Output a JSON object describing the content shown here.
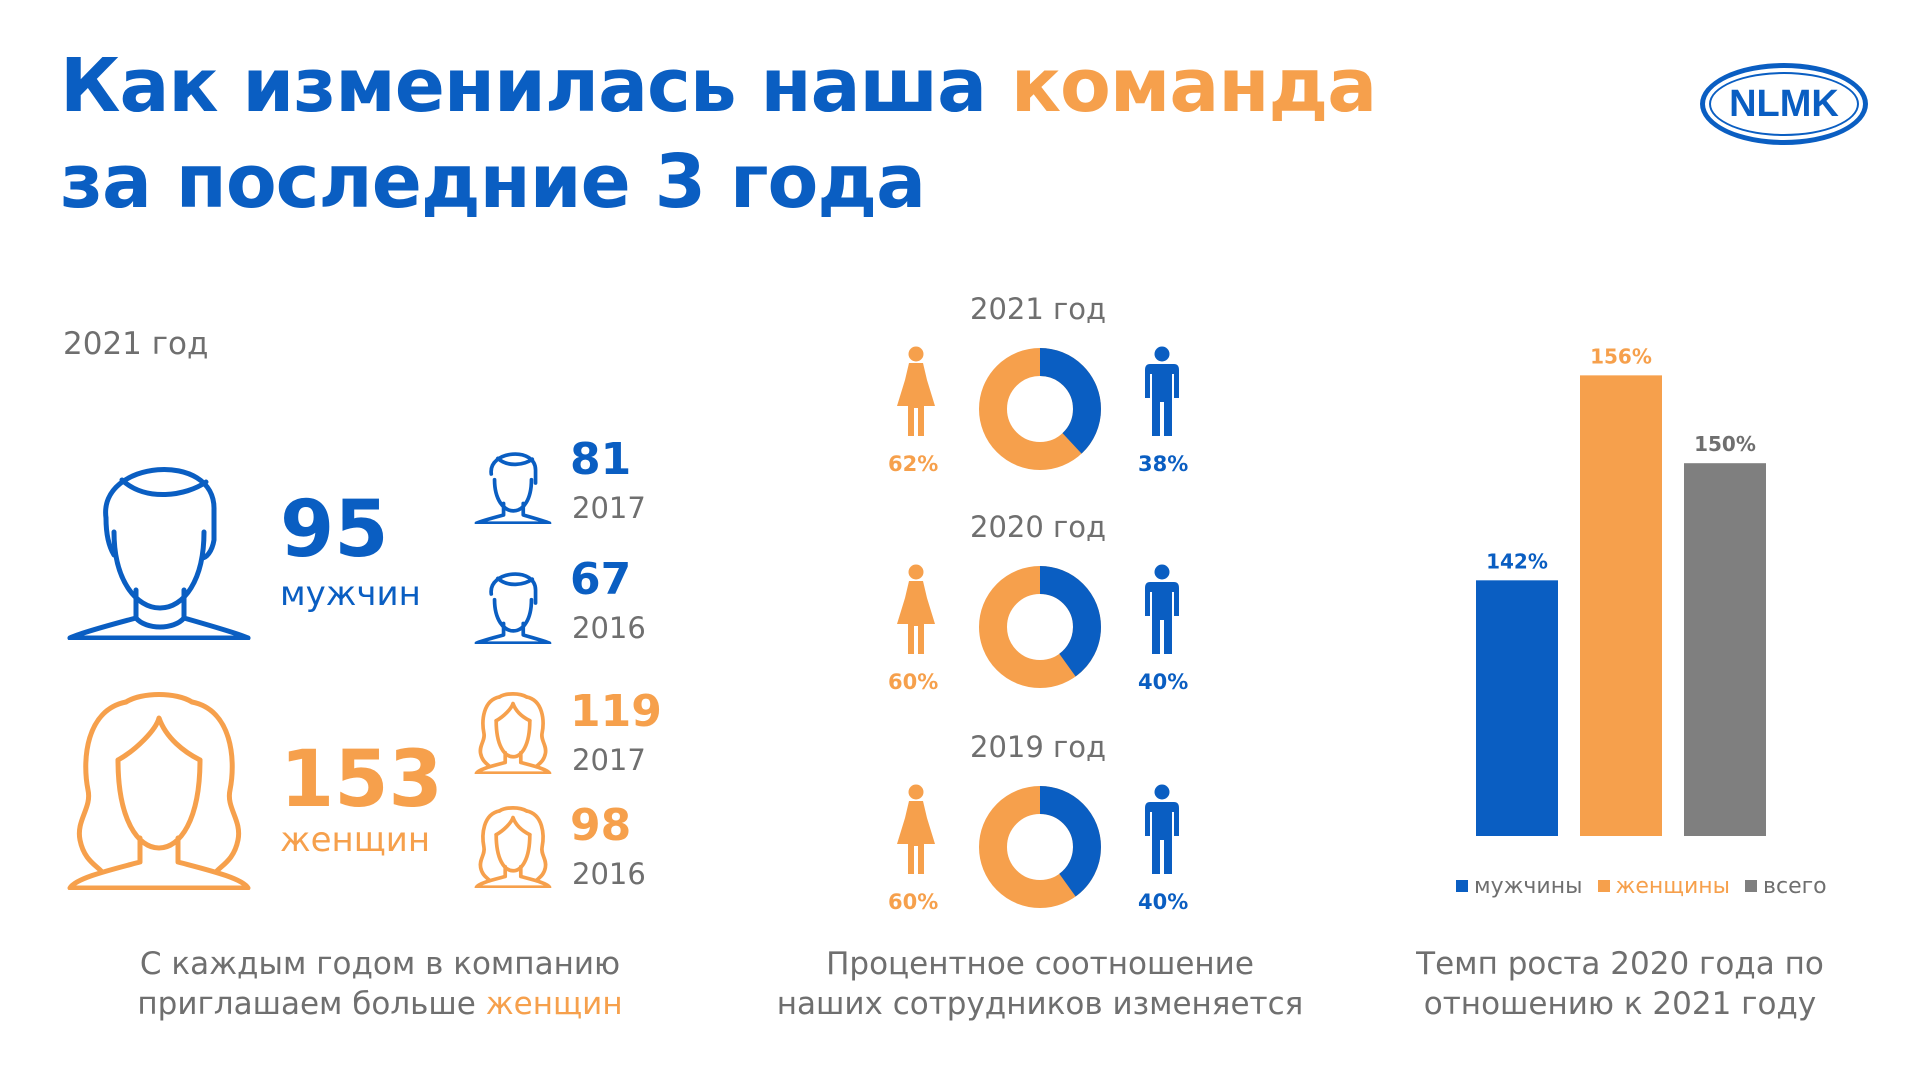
{
  "title": {
    "part1": "Как изменилась наша ",
    "part2": "команда",
    "line2": "за последние 3 года"
  },
  "logo": {
    "text": "NLMK"
  },
  "headcount": {
    "year_label": "2021 год",
    "men": {
      "value": "95",
      "label": "мужчин"
    },
    "women": {
      "value": "153",
      "label": "женщин"
    },
    "men_history": [
      {
        "value": "81",
        "year": "2017"
      },
      {
        "value": "67",
        "year": "2016"
      }
    ],
    "women_history": [
      {
        "value": "119",
        "year": "2017"
      },
      {
        "value": "98",
        "year": "2016"
      }
    ],
    "caption_line1": "С каждым годом в компанию",
    "caption_line2_a": "приглашаем больше ",
    "caption_line2_b": "женщин"
  },
  "ratio": {
    "caption_line1": "Процентное соотношение",
    "caption_line2": "наших сотрудников изменяется"
  },
  "growth": {
    "caption_line1": "Темп роста 2020 года по",
    "caption_line2": "отношению к 2021 году"
  },
  "colors": {
    "men": "#0a5ec2",
    "women": "#f6a04c",
    "total": "#7f7f7f"
  },
  "icons": [
    "man-head-icon",
    "woman-head-icon",
    "woman-figure-icon",
    "man-figure-icon"
  ],
  "chart_data": [
    {
      "type": "pie",
      "title": "2021 год",
      "categories": [
        "женщины",
        "мужчины"
      ],
      "values": [
        62,
        38
      ],
      "labels": [
        "62%",
        "38%"
      ]
    },
    {
      "type": "pie",
      "title": "2020 год",
      "categories": [
        "женщины",
        "мужчины"
      ],
      "values": [
        60,
        40
      ],
      "labels": [
        "60%",
        "40%"
      ]
    },
    {
      "type": "pie",
      "title": "2019 год",
      "categories": [
        "женщины",
        "мужчины"
      ],
      "values": [
        60,
        40
      ],
      "labels": [
        "60%",
        "40%"
      ]
    },
    {
      "type": "bar",
      "categories": [
        "мужчины",
        "женщины",
        "всего"
      ],
      "values": [
        142,
        156,
        150
      ],
      "labels": [
        "142%",
        "156%",
        "150%"
      ],
      "legend": [
        "мужчины",
        "женщины",
        "всего"
      ],
      "legend_position": "bottom",
      "ylim": [
        0,
        160
      ]
    }
  ]
}
